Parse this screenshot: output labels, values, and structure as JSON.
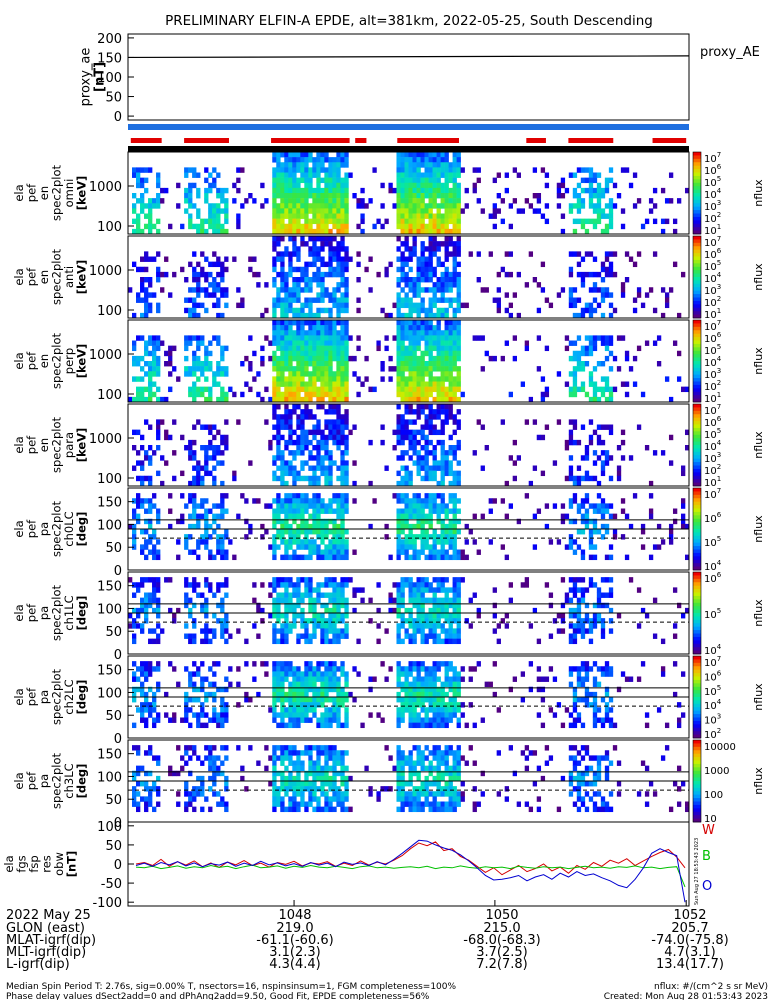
{
  "header": {
    "title": "PRELIMINARY ELFIN-A EPDE, alt=381km, 2022-05-25, South Descending"
  },
  "chart_data": [
    {
      "type": "line",
      "name_label": "proxy_AE",
      "ylabel": [
        "proxy_ae",
        "[nT]"
      ],
      "ylim": [
        -10,
        210
      ],
      "yticks": [
        "200",
        "150",
        "100",
        "50",
        "0"
      ],
      "x": [
        0,
        1
      ],
      "values": [
        150,
        154
      ]
    },
    {
      "type": "bar",
      "subtype": "flag-strip",
      "segments": [
        {
          "start": 0.005,
          "end": 0.06
        },
        {
          "start": 0.1,
          "end": 0.18
        },
        {
          "start": 0.255,
          "end": 0.395
        },
        {
          "start": 0.405,
          "end": 0.425
        },
        {
          "start": 0.48,
          "end": 0.59
        },
        {
          "start": 0.71,
          "end": 0.745
        },
        {
          "start": 0.785,
          "end": 0.865
        },
        {
          "start": 0.935,
          "end": 0.995
        }
      ]
    },
    {
      "type": "heatmap",
      "panels": [
        {
          "ylabel": [
            "ela",
            "pef",
            "en",
            "spec2plot",
            "omni",
            "[keV]"
          ],
          "yticks": [
            "1000",
            "100"
          ],
          "cbar_ticks": [
            "10^7",
            "10^6",
            "10^5",
            "10^4",
            "10^3",
            "10^2",
            "10^1"
          ],
          "cbar_label": "nflux",
          "intensity": 1.0
        },
        {
          "ylabel": [
            "ela",
            "pef",
            "en",
            "spec2plot",
            "anti",
            "[keV]"
          ],
          "yticks": [
            "1000",
            "100"
          ],
          "cbar_ticks": [
            "10^7",
            "10^6",
            "10^5",
            "10^4",
            "10^3",
            "10^2",
            "10^1"
          ],
          "cbar_label": "nflux",
          "intensity": 0.45
        },
        {
          "ylabel": [
            "ela",
            "pef",
            "en",
            "spec2plot",
            "perp",
            "[keV]"
          ],
          "yticks": [
            "1000",
            "100"
          ],
          "cbar_ticks": [
            "10^7",
            "10^6",
            "10^5",
            "10^4",
            "10^3",
            "10^2",
            "10^1"
          ],
          "cbar_label": "nflux",
          "intensity": 1.0
        },
        {
          "ylabel": [
            "ela",
            "pef",
            "en",
            "spec2plot",
            "para",
            "[keV]"
          ],
          "yticks": [
            "1000",
            "100"
          ],
          "cbar_ticks": [
            "10^7",
            "10^6",
            "10^5",
            "10^4",
            "10^3",
            "10^2",
            "10^1"
          ],
          "cbar_label": "nflux",
          "intensity": 0.4
        },
        {
          "ylabel": [
            "ela",
            "pef",
            "pa",
            "spec2plot",
            "ch0LC",
            "[deg]"
          ],
          "yticks": [
            "150",
            "100",
            "50",
            "0"
          ],
          "cbar_ticks": [
            "10^7",
            "10^6",
            "10^5",
            "10^4"
          ],
          "cbar_label": "nflux",
          "intensity": 0.8
        },
        {
          "ylabel": [
            "ela",
            "pef",
            "pa",
            "spec2plot",
            "ch1LC",
            "[deg]"
          ],
          "yticks": [
            "150",
            "100",
            "50",
            "0"
          ],
          "cbar_ticks": [
            "10^6",
            "10^5",
            "10^4"
          ],
          "cbar_label": "nflux",
          "intensity": 0.7
        },
        {
          "ylabel": [
            "ela",
            "pef",
            "pa",
            "spec2plot",
            "ch2LC",
            "[deg]"
          ],
          "yticks": [
            "150",
            "100",
            "50",
            "0"
          ],
          "cbar_ticks": [
            "10^7",
            "10^6",
            "10^5",
            "10^4",
            "10^3",
            "10^2"
          ],
          "cbar_label": "nflux",
          "intensity": 0.75
        },
        {
          "ylabel": [
            "ela",
            "pef",
            "pa",
            "spec2plot",
            "ch3LC",
            "[deg]"
          ],
          "yticks": [
            "150",
            "100",
            "50",
            "0"
          ],
          "cbar_ticks": [
            "10000",
            "1000",
            "100",
            "10"
          ],
          "cbar_label": "nflux",
          "intensity": 0.7
        }
      ]
    },
    {
      "type": "line",
      "ylabel": [
        "ela",
        "fgs",
        "fsp",
        "res",
        "obw",
        "[nT]"
      ],
      "ylim": [
        -110,
        110
      ],
      "yticks": [
        "100",
        "50",
        "0",
        "-50",
        "-100"
      ],
      "legend": [
        "W",
        "B",
        "O"
      ],
      "legend_colors": [
        "#d40000",
        "#00c000",
        "#0000d0"
      ],
      "series": [
        {
          "name": "W",
          "color": "#d40000",
          "values": [
            0,
            4,
            -4,
            12,
            -6,
            6,
            -3,
            8,
            -7,
            3,
            -9,
            5,
            -2,
            9,
            -4,
            2,
            -8,
            4,
            -1,
            7,
            -5,
            3,
            0,
            6,
            -6,
            2,
            -4,
            8,
            -3,
            5,
            0,
            10,
            22,
            40,
            55,
            48,
            58,
            35,
            40,
            20,
            10,
            -6,
            -22,
            -10,
            -28,
            -16,
            -4,
            -20,
            -12,
            0,
            -18,
            -8,
            -24,
            -4,
            -14,
            4,
            -6,
            10,
            2,
            14,
            -4,
            8,
            20,
            30,
            38,
            18,
            -10
          ]
        },
        {
          "name": "B",
          "color": "#00c000",
          "values": [
            -8,
            -10,
            -6,
            -12,
            -9,
            -5,
            -11,
            -7,
            -10,
            -4,
            -9,
            -6,
            -12,
            -7,
            -3,
            -10,
            -8,
            -5,
            -11,
            -6,
            -9,
            -4,
            -8,
            -10,
            -6,
            -9,
            -12,
            -7,
            -5,
            -10,
            -8,
            -11,
            -9,
            -7,
            -10,
            -6,
            -12,
            -8,
            -10,
            -5,
            -9,
            -11,
            -7,
            -10,
            -8,
            -12,
            -6,
            -9,
            -11,
            -7,
            -10,
            -8,
            -12,
            -9,
            -6,
            -10,
            -8,
            -11,
            -7,
            -9,
            -5,
            -10,
            -8,
            -12,
            -9,
            -7,
            -60
          ]
        },
        {
          "name": "O",
          "color": "#0000d0",
          "values": [
            -4,
            2,
            -6,
            4,
            -2,
            6,
            -5,
            3,
            -7,
            1,
            -3,
            5,
            -6,
            2,
            -4,
            7,
            -2,
            3,
            -5,
            1,
            -6,
            4,
            -3,
            2,
            -7,
            5,
            -1,
            3,
            -4,
            6,
            -2,
            12,
            28,
            45,
            62,
            60,
            50,
            42,
            36,
            24,
            8,
            -10,
            -30,
            -42,
            -40,
            -36,
            -30,
            -44,
            -34,
            -28,
            -40,
            -24,
            -34,
            -20,
            -30,
            -26,
            -36,
            -44,
            -56,
            -62,
            -40,
            -10,
            28,
            40,
            30,
            22,
            -100
          ]
        }
      ]
    }
  ],
  "footer_rows": [
    {
      "label": "2022 May 25",
      "cols": [
        "1048",
        "1050",
        "1052"
      ]
    },
    {
      "label": "GLON (east)",
      "cols": [
        "219.0",
        "215.0",
        "205.7"
      ]
    },
    {
      "label": "MLAT-igrf(dip)",
      "cols": [
        "-61.1(-60.6)",
        "-68.0(-68.3)",
        "-74.0(-75.8)"
      ]
    },
    {
      "label": "MLT-igrf(dip)",
      "cols": [
        "3.1(2.3)",
        "3.7(2.5)",
        "4.7(3.1)"
      ]
    },
    {
      "label": "L-igrf(dip)",
      "cols": [
        "4.3(4.4)",
        "7.2(7.8)",
        "13.4(17.7)"
      ]
    }
  ],
  "notes": {
    "line1": "Median Spin Period T: 2.76s, sig=0.00% T, nsectors=16, nspinsinsum=1, FGM completeness=100%",
    "line2": "Phase delay values dSect2add=0 and dPhAng2add=9.50, Good Fit, EPDE completeness=56%",
    "units": "nflux: #/(cm^2 s sr MeV)",
    "created": "Created: Mon Aug 28 01:53:43 2023",
    "stamp": "Sun Aug 27 18:53:43 2023"
  },
  "colors": {
    "flag_red": "#e00000",
    "flag_blue": "#1e6fe0",
    "bar_black": "#000000"
  }
}
